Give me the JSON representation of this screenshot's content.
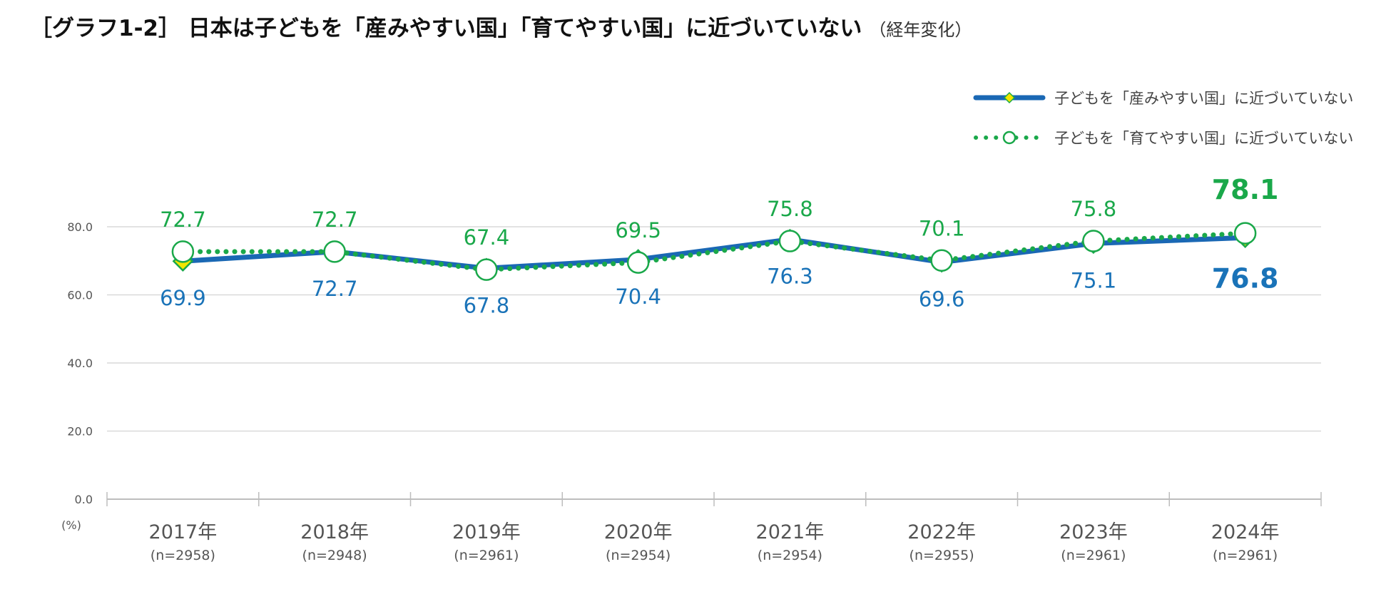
{
  "title": {
    "main": "［グラフ1-2］ 日本は子どもを「産みやすい国」「育てやすい国」に近づいていない",
    "sub": "（経年変化）"
  },
  "chart_data": {
    "type": "line",
    "categories": [
      "2017年",
      "2018年",
      "2019年",
      "2020年",
      "2021年",
      "2022年",
      "2023年",
      "2024年"
    ],
    "sample_sizes": [
      "(n=2958)",
      "(n=2948)",
      "(n=2961)",
      "(n=2954)",
      "(n=2954)",
      "(n=2955)",
      "(n=2961)",
      "(n=2961)"
    ],
    "series": [
      {
        "name": "子どもを「産みやすい国」に近づいていない",
        "values": [
          69.9,
          72.7,
          67.8,
          70.4,
          76.3,
          69.6,
          75.1,
          76.8
        ],
        "labels": [
          "69.9",
          "72.7",
          "67.8",
          "70.4",
          "76.3",
          "69.6",
          "75.1",
          "76.8"
        ],
        "color": "#1a68b4",
        "marker_fill": "#f2e600",
        "marker_edge": "#1aa84a",
        "label_color": "#1a73b8",
        "style": "solid",
        "marker": "diamond"
      },
      {
        "name": "子どもを「育てやすい国」に近づいていない",
        "values": [
          72.7,
          72.7,
          67.4,
          69.5,
          75.8,
          70.1,
          75.8,
          78.1
        ],
        "labels": [
          "72.7",
          "72.7",
          "67.4",
          "69.5",
          "75.8",
          "70.1",
          "75.8",
          "78.1"
        ],
        "color": "#1aa84a",
        "marker_fill": "#ffffff",
        "marker_edge": "#1aa84a",
        "label_color": "#1aa84a",
        "style": "dotted",
        "marker": "circle"
      }
    ],
    "y_ticks": [
      "0.0",
      "20.0",
      "40.0",
      "60.0",
      "80.0"
    ],
    "ylim": [
      0,
      80
    ],
    "y_unit": "(%)",
    "grid": true,
    "legend_position": "top-right"
  }
}
